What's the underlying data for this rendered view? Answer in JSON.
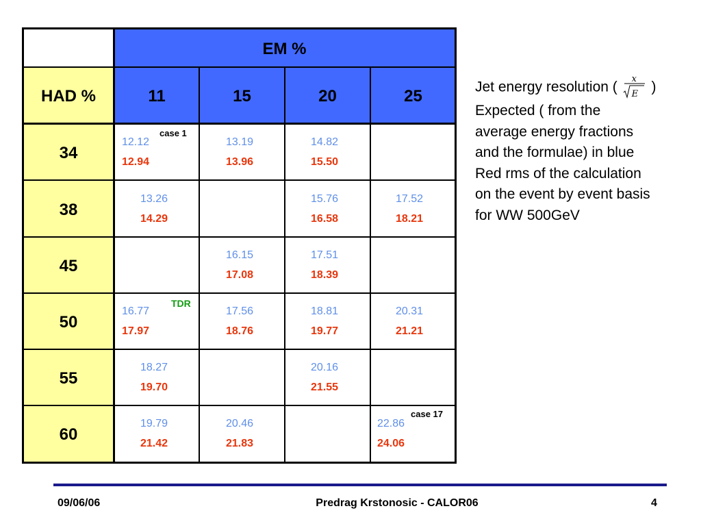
{
  "table": {
    "em_header": "EM %",
    "had_header": "HAD %",
    "em_columns": [
      "11",
      "15",
      "20",
      "25"
    ],
    "rows": [
      {
        "had": "34",
        "cells": [
          {
            "blue": "12.12",
            "red": "12.94"
          },
          {
            "blue": "13.19",
            "red": "13.96"
          },
          {
            "blue": "14.82",
            "red": "15.50"
          },
          {
            "blue": "",
            "red": ""
          }
        ]
      },
      {
        "had": "38",
        "cells": [
          {
            "blue": "13.26",
            "red": "14.29"
          },
          {
            "blue": "",
            "red": ""
          },
          {
            "blue": "15.76",
            "red": "16.58"
          },
          {
            "blue": "17.52",
            "red": "18.21"
          }
        ]
      },
      {
        "had": "45",
        "cells": [
          {
            "blue": "",
            "red": ""
          },
          {
            "blue": "16.15",
            "red": "17.08"
          },
          {
            "blue": "17.51",
            "red": "18.39"
          },
          {
            "blue": "",
            "red": ""
          }
        ]
      },
      {
        "had": "50",
        "cells": [
          {
            "blue": "16.77",
            "red": "17.97"
          },
          {
            "blue": "17.56",
            "red": "18.76"
          },
          {
            "blue": "18.81",
            "red": "19.77"
          },
          {
            "blue": "20.31",
            "red": "21.21"
          }
        ]
      },
      {
        "had": "55",
        "cells": [
          {
            "blue": "18.27",
            "red": "19.70"
          },
          {
            "blue": "",
            "red": ""
          },
          {
            "blue": "20.16",
            "red": "21.55"
          },
          {
            "blue": "",
            "red": ""
          }
        ]
      },
      {
        "had": "60",
        "cells": [
          {
            "blue": "19.79",
            "red": "21.42"
          },
          {
            "blue": "20.46",
            "red": "21.83"
          },
          {
            "blue": "",
            "red": ""
          },
          {
            "blue": "22.86",
            "red": "24.06"
          }
        ]
      }
    ],
    "annotations": {
      "case1": "case 1",
      "tdr": "TDR",
      "case17": "case 17"
    }
  },
  "side_text": {
    "line1_prefix": "Jet energy resolution (",
    "line1_suffix": ")",
    "formula_numerator": "x",
    "formula_denominator": "E",
    "lines": [
      "Expected ( from the",
      "average energy fractions",
      "and the formulae) in blue",
      "Red rms of the calculation",
      "on the event by event basis",
      "for WW 500GeV"
    ]
  },
  "footer": {
    "date": "09/06/06",
    "author": "Predrag Krstonosic -  CALOR06",
    "page": "4"
  },
  "colors": {
    "header_blue": "#4169ff",
    "had_yellow": "#ffffa0",
    "expected_blue": "#5f8fe8",
    "rms_red": "#e8360c",
    "tdr_green": "#129a12",
    "footer_rule": "#1a1a8c"
  }
}
